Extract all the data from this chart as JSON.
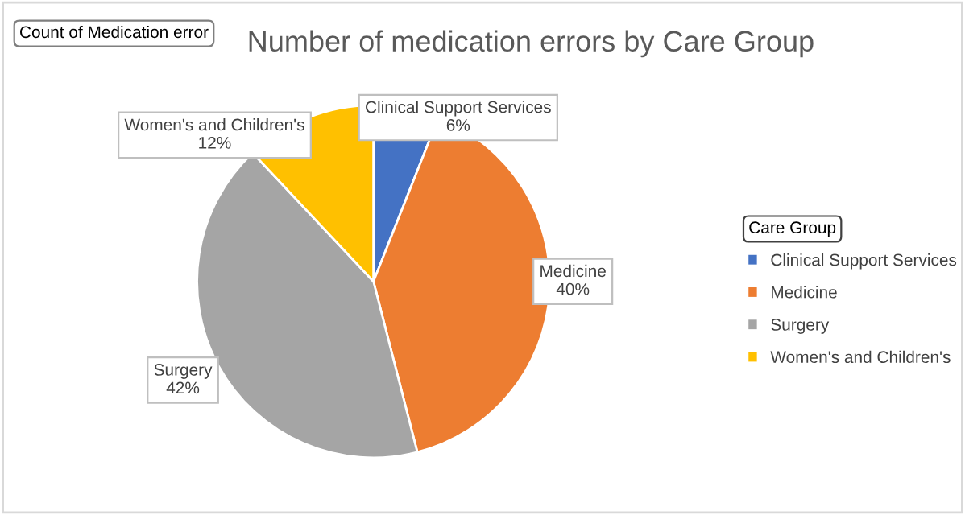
{
  "chart_data": {
    "type": "pie",
    "title": "Number of medication errors by Care Group",
    "categories": [
      "Clinical Support Services",
      "Medicine",
      "Surgery",
      "Women's and Children's"
    ],
    "values": [
      6,
      40,
      42,
      12
    ],
    "value_labels": [
      "6%",
      "40%",
      "42%",
      "12%"
    ],
    "colors": [
      "#4472c4",
      "#ed7d31",
      "#a5a5a5",
      "#ffc000"
    ],
    "legend_title": "Care Group",
    "legend": "right",
    "annotations": [
      "Count of Medication error"
    ]
  }
}
